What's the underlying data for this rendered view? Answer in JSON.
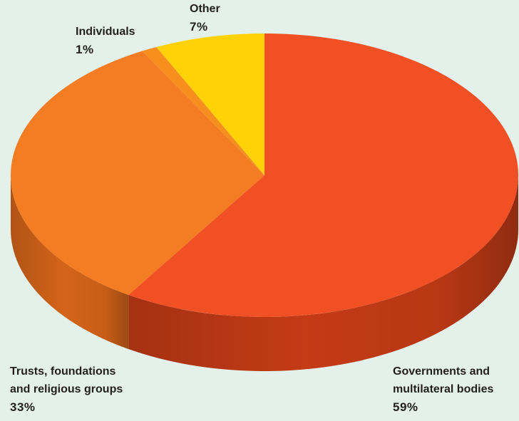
{
  "chart_data": {
    "type": "pie",
    "title": "",
    "slices": [
      {
        "label": "Governments and\nmultilateral bodies",
        "value": 59,
        "value_label": "59%",
        "color": "#f05023",
        "side_color": "#c83c16"
      },
      {
        "label": "Trusts, foundations\nand religious groups",
        "value": 33,
        "value_label": "33%",
        "color": "#f47c22",
        "side_color": "#d8661a"
      },
      {
        "label": "Individuals",
        "value": 1,
        "value_label": "1%",
        "color": "#f68f1e",
        "side_color": "#d9741a"
      },
      {
        "label": "Other",
        "value": 7,
        "value_label": "7%",
        "color": "#fed206",
        "side_color": "#e0b300"
      }
    ]
  },
  "colors": {
    "background": "#e3f1ea",
    "text": "#231f20"
  }
}
